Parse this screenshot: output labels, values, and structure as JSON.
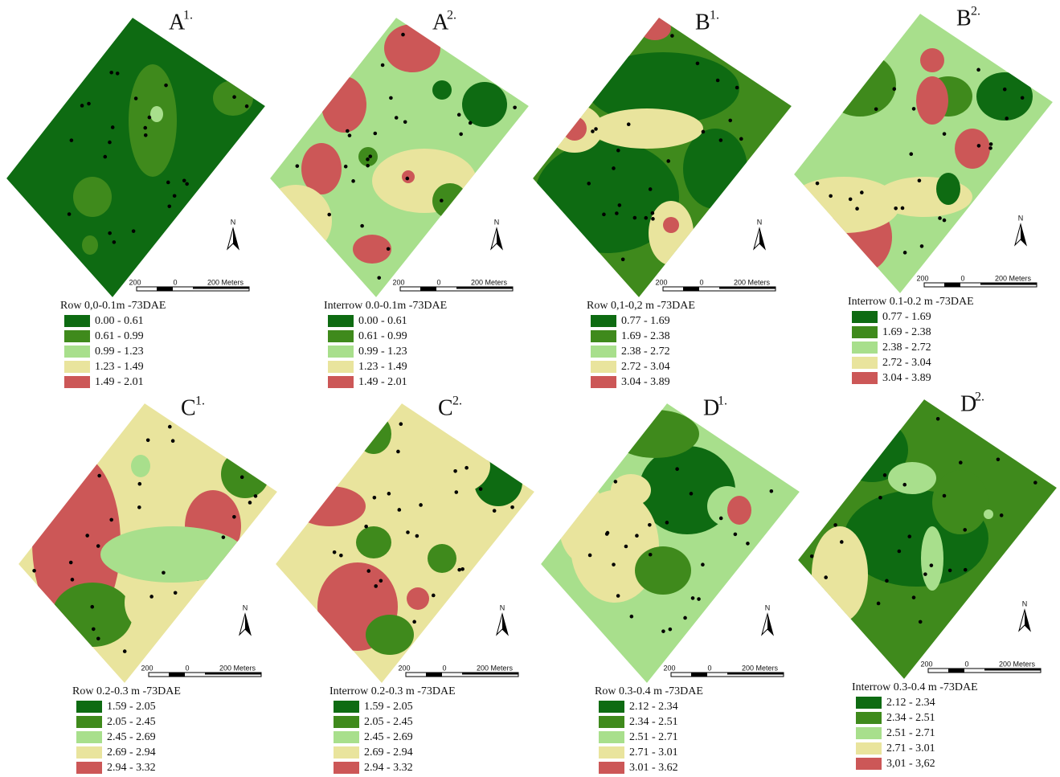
{
  "panels": [
    {
      "label": "A",
      "sup": "1.",
      "legend_title": "Row 0,0-0.1m -73DAE",
      "classes": [
        "0.00 - 0.61",
        "0.61 - 0.99",
        "0.99 - 1.23",
        "1.23 - 1.49",
        "1.49 - 2.01"
      ]
    },
    {
      "label": "A",
      "sup": "2.",
      "legend_title": "Interrow 0.0-0.1m -73DAE",
      "classes": [
        "0.00 - 0.61",
        "0.61 - 0.99",
        "0.99 - 1.23",
        "1.23 - 1.49",
        "1.49 - 2.01"
      ]
    },
    {
      "label": "B",
      "sup": "1.",
      "legend_title": "Row 0,1-0,2 m -73DAE",
      "classes": [
        "0.77 - 1.69",
        "1.69 - 2.38",
        "2.38 - 2.72",
        "2.72 - 3.04",
        "3.04 - 3.89"
      ]
    },
    {
      "label": "B",
      "sup": "2.",
      "legend_title": "Interrow 0.1-0.2 m -73DAE",
      "classes": [
        "0.77 - 1.69",
        "1.69 - 2.38",
        "2.38 - 2.72",
        "2.72 - 3.04",
        "3.04 - 3.89"
      ]
    },
    {
      "label": "C",
      "sup": "1.",
      "legend_title": "Row 0.2-0.3 m -73DAE",
      "classes": [
        "1.59 - 2.05",
        "2.05 - 2.45",
        "2.45 - 2.69",
        "2.69 - 2.94",
        "2.94 - 3.32"
      ]
    },
    {
      "label": "C",
      "sup": "2.",
      "legend_title": "Interrow 0.2-0.3 m -73DAE",
      "classes": [
        "1.59 - 2.05",
        "2.05 - 2.45",
        "2.45 - 2.69",
        "2.69 - 2.94",
        "2.94 - 3.32"
      ]
    },
    {
      "label": "D",
      "sup": "1.",
      "legend_title": "Row 0.3-0.4 m -73DAE",
      "classes": [
        "2.12 - 2.34",
        "2.34 - 2.51",
        "2.51 - 2.71",
        "2.71 - 3.01",
        "3.01 - 3.62"
      ]
    },
    {
      "label": "D",
      "sup": "2.",
      "legend_title": "Interrow 0.3-0.4 m -73DAE",
      "classes": [
        "2.12 - 2.34",
        "2.34 - 2.51",
        "2.51 - 2.71",
        "2.71 - 3.01",
        "3,01 - 3,62"
      ]
    }
  ],
  "colors": [
    "#0e6b12",
    "#3f8a1c",
    "#a8df8c",
    "#e9e49d",
    "#cc5757"
  ],
  "scale_bar": {
    "left": "200",
    "mid": "0",
    "right": "200 Meters"
  },
  "north": "N"
}
